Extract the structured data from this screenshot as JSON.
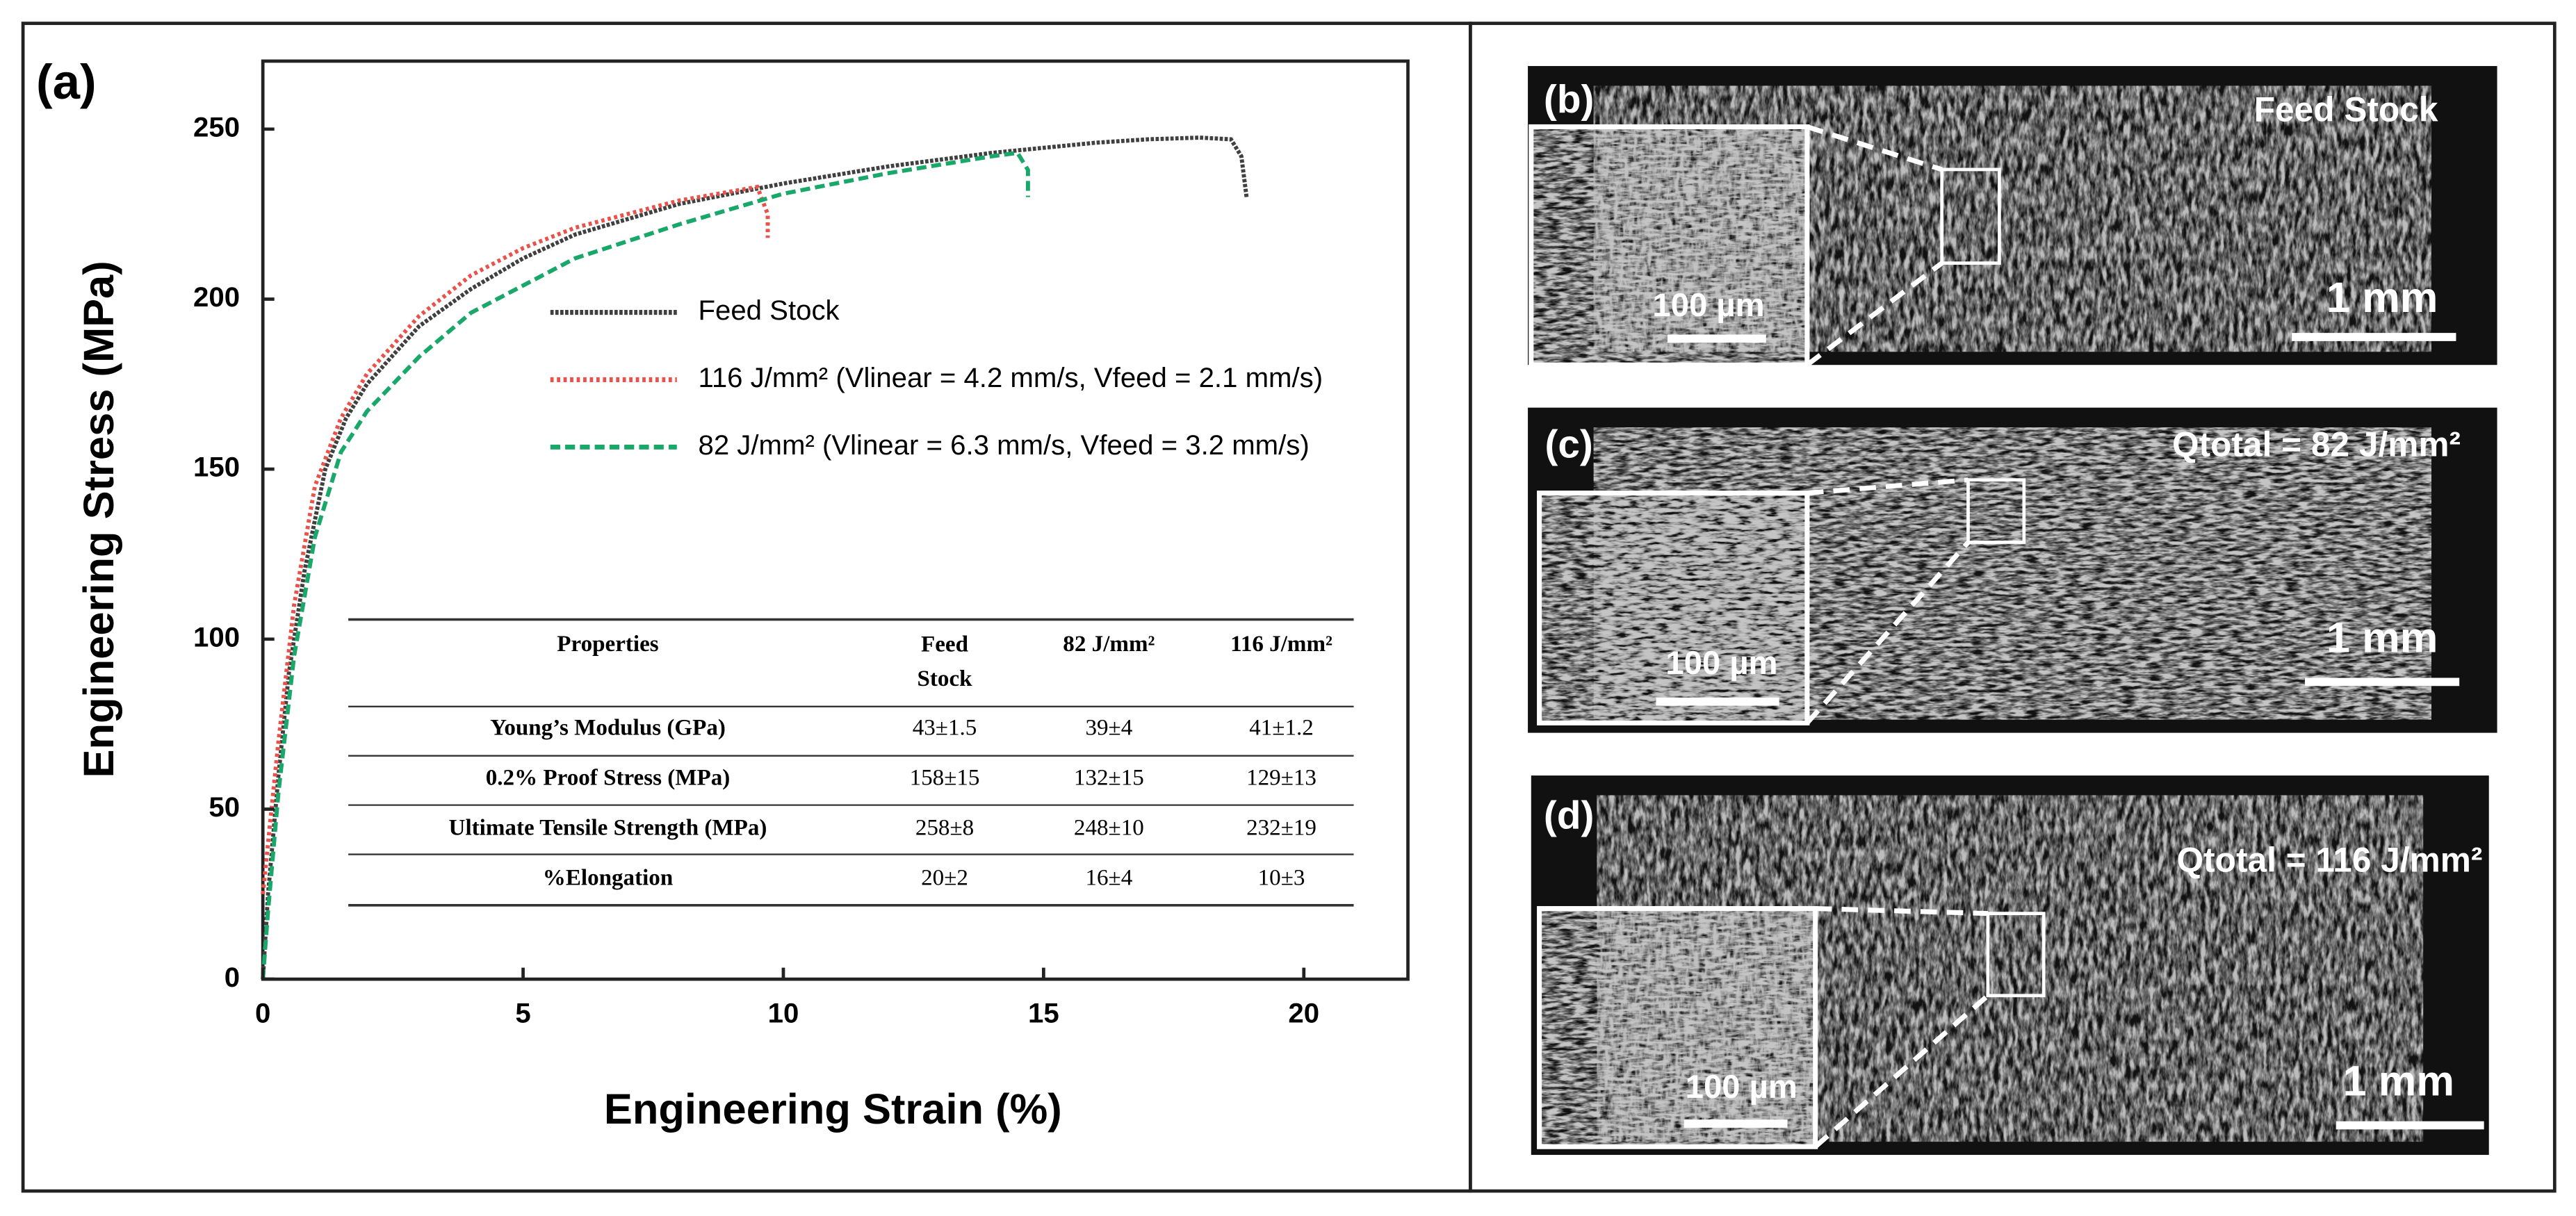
{
  "chart_data": {
    "type": "line",
    "panel_label": "(a)",
    "x_label": "Engineering Strain (%)",
    "y_label": "Engineering Stress (MPa)",
    "xlim": [
      0,
      22
    ],
    "xticks": [
      0,
      5,
      10,
      15,
      20
    ],
    "ylim": [
      0,
      270
    ],
    "yticks": [
      0,
      50,
      100,
      150,
      200,
      250
    ],
    "series": [
      {
        "name": "Feed Stock",
        "color": "#404040",
        "style": "solid",
        "x": [
          0,
          0.1,
          0.3,
          0.5,
          0.8,
          1.2,
          1.6,
          2,
          3,
          4,
          5,
          6,
          8,
          10,
          12,
          14,
          16,
          17,
          18,
          18.6,
          18.8,
          18.9
        ],
        "values": [
          0,
          25,
          60,
          90,
          120,
          150,
          165,
          175,
          192,
          203,
          212,
          219,
          228,
          234,
          239,
          243,
          246,
          247,
          247.5,
          247,
          242,
          230
        ]
      },
      {
        "name": "116 J/mm² (Vlinear = 4.2 mm/s, Vfeed = 2.1 mm/s)",
        "color": "#e8524a",
        "style": "dotted",
        "x": [
          0,
          0.3,
          0.6,
          1,
          1.5,
          2,
          3,
          4,
          5,
          6,
          8,
          9.5,
          9.7,
          9.7
        ],
        "values": [
          25,
          70,
          110,
          145,
          165,
          178,
          195,
          207,
          215,
          221,
          229,
          233,
          225,
          218
        ]
      },
      {
        "name": "82 J/mm² (Vlinear = 6.3 mm/s, Vfeed = 3.2 mm/s)",
        "color": "#1aa86a",
        "style": "dashed",
        "x": [
          0,
          0.1,
          0.3,
          0.6,
          1,
          1.5,
          2,
          3,
          4,
          5,
          6,
          8,
          10,
          12,
          14,
          14.5,
          14.7,
          14.7
        ],
        "values": [
          0,
          20,
          55,
          95,
          130,
          155,
          167,
          183,
          196,
          204,
          212,
          222,
          231,
          237,
          242,
          243,
          238,
          230
        ]
      }
    ]
  },
  "table": {
    "header": [
      "Properties",
      "Feed Stock",
      "82 J/mm²",
      "116 J/mm²"
    ],
    "rows": [
      [
        "Young’s Modulus (GPa)",
        "43±1.5",
        "39±4",
        "41±1.2"
      ],
      [
        "0.2% Proof Stress (MPa)",
        "158±15",
        "132±15",
        "129±13"
      ],
      [
        "Ultimate Tensile Strength (MPa)",
        "258±8",
        "248±10",
        "232±19"
      ],
      [
        "%Elongation",
        "20±2",
        "16±4",
        "10±3"
      ]
    ]
  },
  "panels": [
    {
      "label": "(b)",
      "caption": "Feed Stock",
      "inset_scale": "100 µm",
      "scale": "1 mm"
    },
    {
      "label": "(c)",
      "caption": "Qtotal = 82 J/mm²",
      "inset_scale": "100 µm",
      "scale": "1 mm"
    },
    {
      "label": "(d)",
      "caption": "Qtotal = 116 J/mm²",
      "inset_scale": "100 µm",
      "scale": "1 mm"
    }
  ]
}
